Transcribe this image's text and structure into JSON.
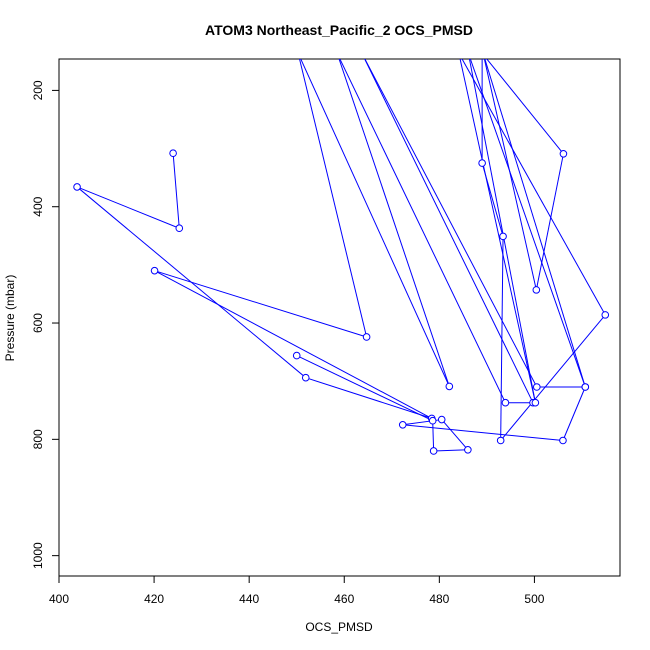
{
  "chart_data": {
    "type": "line",
    "title": "ATOM3 Northeast_Pacific_2 OCS_PMSD",
    "xlabel": "OCS_PMSD",
    "ylabel": "Pressure (mbar)",
    "xlim": [
      400,
      518
    ],
    "ylim": [
      1035,
      146
    ],
    "y_reversed": true,
    "x_ticks": [
      400,
      420,
      440,
      460,
      480,
      500
    ],
    "y_ticks": [
      200,
      400,
      600,
      800,
      1000
    ],
    "grid": false,
    "series": [
      {
        "color": "#0000ff",
        "marker": "open-circle",
        "points": [
          {
            "x": 424.0,
            "y": 308
          },
          {
            "x": 425.3,
            "y": 437
          },
          {
            "x": 403.8,
            "y": 366
          },
          {
            "x": 451.9,
            "y": 694
          },
          {
            "x": 478.4,
            "y": 764
          },
          {
            "x": 420.1,
            "y": 510
          },
          {
            "x": 464.7,
            "y": 624
          },
          {
            "x": 450.3,
            "y": 136
          },
          {
            "x": 482.1,
            "y": 709
          },
          {
            "x": 458.5,
            "y": 136
          },
          {
            "x": 493.9,
            "y": 737
          },
          {
            "x": 499.7,
            "y": 737
          },
          {
            "x": 463.7,
            "y": 136
          },
          {
            "x": 500.5,
            "y": 710
          },
          {
            "x": 510.7,
            "y": 710
          },
          {
            "x": 489.2,
            "y": 136
          },
          {
            "x": 500.4,
            "y": 543
          },
          {
            "x": 506.1,
            "y": 309
          },
          {
            "x": 489.0,
            "y": 136
          },
          {
            "x": 489.0,
            "y": 325
          },
          {
            "x": 493.4,
            "y": 451
          },
          {
            "x": 492.9,
            "y": 802
          },
          {
            "x": 514.9,
            "y": 586
          },
          {
            "x": 484.1,
            "y": 136
          },
          {
            "x": 500.2,
            "y": 737
          },
          {
            "x": 486.1,
            "y": 136
          },
          {
            "x": 510.7,
            "y": 710
          },
          {
            "x": 506.0,
            "y": 802
          },
          {
            "x": 472.3,
            "y": 775
          },
          {
            "x": 480.5,
            "y": 766
          },
          {
            "x": 486.0,
            "y": 818
          },
          {
            "x": 478.8,
            "y": 820
          },
          {
            "x": 478.6,
            "y": 768
          },
          {
            "x": 450.0,
            "y": 656
          }
        ]
      }
    ]
  }
}
